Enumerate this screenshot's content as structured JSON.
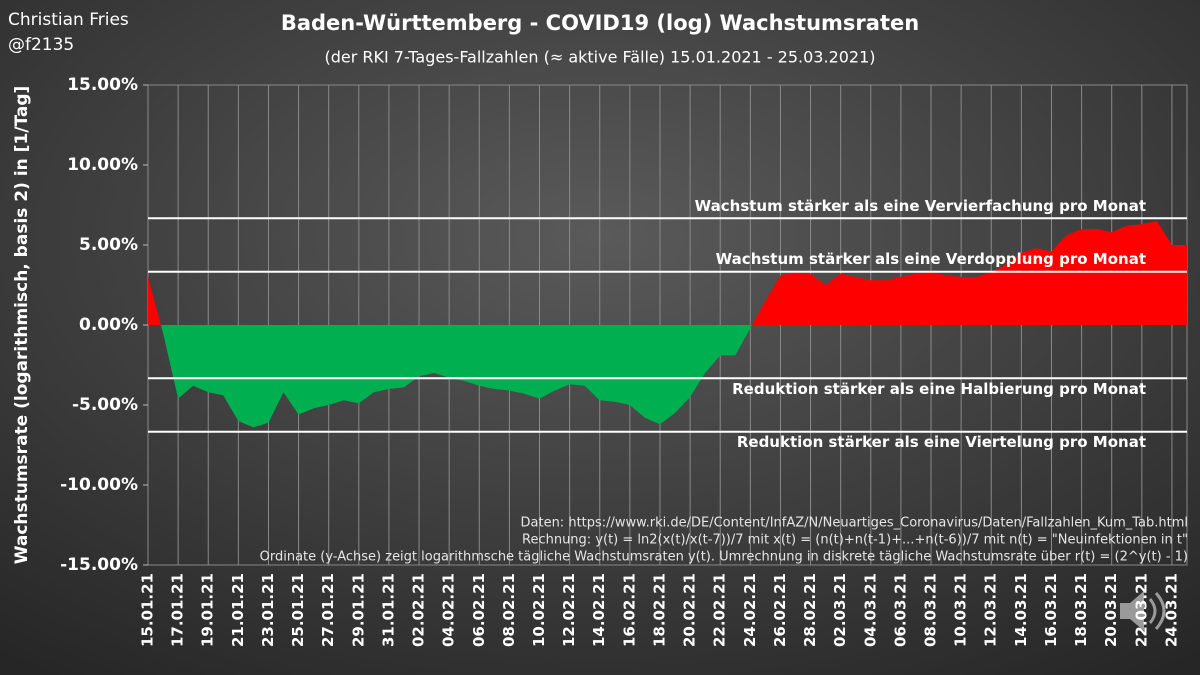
{
  "header": {
    "author": "Christian Fries",
    "handle": "@f2135"
  },
  "chart_data": {
    "type": "area",
    "title": "Baden-Württemberg - COVID19  (log) Wachstumsraten",
    "subtitle": "(der RKI 7-Tages-Fallzahlen (≈ aktive Fälle) 15.01.2021 - 25.03.2021)",
    "y_label": "Wachstumsrate (logarithmisch, basis 2) in [1/Tag]",
    "categories": [
      "15.01.21",
      null,
      "17.01.21",
      null,
      "19.01.21",
      null,
      "21.01.21",
      null,
      "23.01.21",
      null,
      "25.01.21",
      null,
      "27.01.21",
      null,
      "29.01.21",
      null,
      "31.01.21",
      null,
      "02.02.21",
      null,
      "04.02.21",
      null,
      "06.02.21",
      null,
      "08.02.21",
      null,
      "10.02.21",
      null,
      "12.02.21",
      null,
      "14.02.21",
      null,
      "16.02.21",
      null,
      "18.02.21",
      null,
      "20.02.21",
      null,
      "22.02.21",
      null,
      "24.02.21",
      null,
      "26.02.21",
      null,
      "28.02.21",
      null,
      "02.03.21",
      null,
      "04.03.21",
      null,
      "06.03.21",
      null,
      "08.03.21",
      null,
      "10.03.21",
      null,
      "12.03.21",
      null,
      "14.03.21",
      null,
      "16.03.21",
      null,
      "18.03.21",
      null,
      "20.03.21",
      null,
      "22.03.21",
      null,
      "24.03.21",
      null
    ],
    "values": [
      3.0,
      -0.5,
      -4.6,
      -3.8,
      -4.2,
      -4.4,
      -6.0,
      -6.4,
      -6.1,
      -4.2,
      -5.6,
      -5.2,
      -5.0,
      -4.7,
      -4.9,
      -4.2,
      -4.0,
      -3.9,
      -3.2,
      -3.0,
      -3.3,
      -3.5,
      -3.8,
      -4.0,
      -4.1,
      -4.3,
      -4.6,
      -4.1,
      -3.7,
      -3.8,
      -4.7,
      -4.8,
      -5.0,
      -5.8,
      -6.2,
      -5.5,
      -4.5,
      -3.0,
      -1.9,
      -1.9,
      -0.2,
      1.5,
      3.1,
      3.3,
      3.2,
      2.5,
      3.2,
      3.0,
      2.8,
      2.8,
      3.0,
      3.2,
      3.3,
      3.1,
      3.0,
      3.0,
      3.3,
      3.8,
      4.5,
      4.8,
      4.6,
      5.6,
      6.0,
      6.0,
      5.8,
      6.2,
      6.3,
      6.5,
      5.0,
      5.0
    ],
    "colors": {
      "positive": "#ff0000",
      "negative": "#00b050"
    },
    "ylim": [
      -15,
      15
    ],
    "yticks": [
      {
        "value": -15,
        "label": "-15.00%"
      },
      {
        "value": -10,
        "label": "-10.00%"
      },
      {
        "value": -5,
        "label": "-5.00%"
      },
      {
        "value": 0,
        "label": "0.00%"
      },
      {
        "value": 5,
        "label": "5.00%"
      },
      {
        "value": 10,
        "label": "10.00%"
      },
      {
        "value": 15,
        "label": "15.00%"
      }
    ],
    "reference_lines": [
      {
        "value": 6.67,
        "label": "Wachstum stärker als eine Vervierfachung pro Monat"
      },
      {
        "value": 3.33,
        "label": "Wachstum stärker als eine Verdopplung pro Monat"
      },
      {
        "value": -3.33,
        "label": "Reduktion stärker als eine Halbierung pro Monat"
      },
      {
        "value": -6.67,
        "label": "Reduktion stärker als eine Viertelung pro Monat"
      }
    ],
    "notes": [
      "Daten: https://www.rki.de/DE/Content/InfAZ/N/Neuartiges_Coronavirus/Daten/Fallzahlen_Kum_Tab.html",
      "Rechnung: y(t) = ln2(x(t)/x(t-7))/7 mit x(t) = (n(t)+n(t-1)+...+n(t-6))/7 mit n(t) = \"Neuinfektionen in t\"",
      "Ordinate (y-Achse) zeigt logarithmsche tägliche Wachstumsraten y(t). Umrechnung in diskrete tägliche Wachstumsrate über r(t) = (2^y(t) - 1)"
    ]
  }
}
